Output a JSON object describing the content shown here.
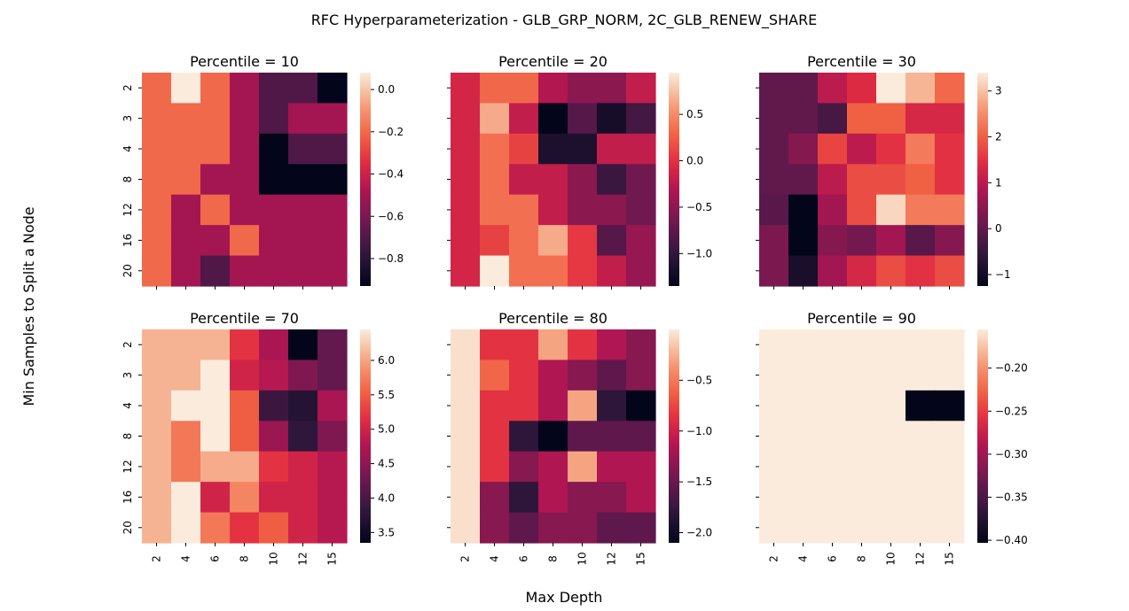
{
  "chart_data": {
    "type": "heatmap",
    "title": "RFC Hyperparameterization - GLB_GRP_NORM, 2C_GLB_RENEW_SHARE",
    "xlabel": "Max Depth",
    "ylabel": "Min Samples to Split a Node",
    "x_categories": [
      "2",
      "4",
      "6",
      "8",
      "10",
      "12",
      "15"
    ],
    "y_categories": [
      "2",
      "3",
      "4",
      "8",
      "12",
      "16",
      "20"
    ],
    "colormap": "rocket",
    "panels": [
      {
        "title": "Percentile = 10",
        "vmin": -0.93,
        "vmax": 0.08,
        "colorbar_ticks": [
          "0.0",
          "−0.2",
          "−0.4",
          "−0.6",
          "−0.8"
        ],
        "colorbar_tick_values": [
          0.0,
          -0.2,
          -0.4,
          -0.6,
          -0.8
        ],
        "values": [
          [
            -0.2,
            0.08,
            -0.2,
            -0.5,
            -0.7,
            -0.7,
            -0.93
          ],
          [
            -0.2,
            -0.2,
            -0.2,
            -0.5,
            -0.7,
            -0.5,
            -0.5
          ],
          [
            -0.2,
            -0.2,
            -0.2,
            -0.5,
            -0.93,
            -0.7,
            -0.7
          ],
          [
            -0.2,
            -0.2,
            -0.5,
            -0.5,
            -0.93,
            -0.93,
            -0.93
          ],
          [
            -0.2,
            -0.5,
            -0.2,
            -0.5,
            -0.5,
            -0.5,
            -0.5
          ],
          [
            -0.2,
            -0.5,
            -0.5,
            -0.2,
            -0.5,
            -0.5,
            -0.5
          ],
          [
            -0.2,
            -0.5,
            -0.7,
            -0.5,
            -0.5,
            -0.5,
            -0.5
          ]
        ]
      },
      {
        "title": "Percentile = 20",
        "vmin": -1.35,
        "vmax": 0.95,
        "colorbar_ticks": [
          "0.5",
          "0.0",
          "−0.5",
          "−1.0"
        ],
        "colorbar_tick_values": [
          0.5,
          0.0,
          -0.5,
          -1.0
        ],
        "values": [
          [
            -0.1,
            0.3,
            0.3,
            -0.3,
            -0.5,
            -0.5,
            -0.2
          ],
          [
            -0.1,
            0.65,
            -0.2,
            -1.35,
            -0.8,
            -1.2,
            -0.9
          ],
          [
            -0.1,
            0.35,
            0.1,
            -1.15,
            -1.15,
            -0.2,
            -0.2
          ],
          [
            -0.1,
            0.35,
            -0.2,
            -0.2,
            -0.5,
            -0.95,
            -0.65
          ],
          [
            -0.1,
            0.35,
            0.35,
            -0.2,
            -0.5,
            -0.5,
            -0.65
          ],
          [
            -0.1,
            0.1,
            0.35,
            0.65,
            0.05,
            -0.8,
            -0.45
          ],
          [
            -0.1,
            0.95,
            0.35,
            0.35,
            0.05,
            -0.2,
            -0.45
          ]
        ]
      },
      {
        "title": "Percentile = 30",
        "vmin": -1.25,
        "vmax": 3.4,
        "colorbar_ticks": [
          "3",
          "2",
          "1",
          "0",
          "−1"
        ],
        "colorbar_tick_values": [
          3,
          2,
          1,
          0,
          -1
        ],
        "values": [
          [
            0.0,
            0.0,
            1.0,
            1.4,
            3.4,
            2.9,
            2.1
          ],
          [
            0.0,
            0.0,
            -0.3,
            2.0,
            2.0,
            1.3,
            1.3
          ],
          [
            0.0,
            0.4,
            1.7,
            1.0,
            1.5,
            2.3,
            1.5
          ],
          [
            0.0,
            0.0,
            1.0,
            1.8,
            1.8,
            2.0,
            1.5
          ],
          [
            -0.1,
            -1.25,
            0.7,
            1.8,
            3.2,
            2.3,
            2.3
          ],
          [
            0.3,
            -1.25,
            0.4,
            0.2,
            0.7,
            -0.1,
            0.4
          ],
          [
            0.3,
            -0.9,
            0.7,
            1.3,
            1.8,
            1.5,
            1.8
          ]
        ]
      },
      {
        "title": "Percentile = 70",
        "vmin": 3.35,
        "vmax": 6.45,
        "colorbar_ticks": [
          "6.0",
          "5.5",
          "5.0",
          "4.5",
          "4.0",
          "3.5"
        ],
        "colorbar_tick_values": [
          6.0,
          5.5,
          5.0,
          4.5,
          4.0,
          3.5
        ],
        "values": [
          [
            6.1,
            6.1,
            6.1,
            5.2,
            4.7,
            3.35,
            4.2
          ],
          [
            6.1,
            6.1,
            6.45,
            5.0,
            4.8,
            4.4,
            4.2
          ],
          [
            6.1,
            6.45,
            6.45,
            5.5,
            3.9,
            3.7,
            4.7
          ],
          [
            6.1,
            5.7,
            6.45,
            5.5,
            4.6,
            3.8,
            4.4
          ],
          [
            6.1,
            5.7,
            6.05,
            6.05,
            5.2,
            5.0,
            4.8
          ],
          [
            6.1,
            6.45,
            5.0,
            5.8,
            5.0,
            5.0,
            4.8
          ],
          [
            6.1,
            6.45,
            5.7,
            5.2,
            5.5,
            5.0,
            4.8
          ]
        ]
      },
      {
        "title": "Percentile = 80",
        "vmin": -2.1,
        "vmax": 0.0,
        "colorbar_ticks": [
          "−0.5",
          "−1.0",
          "−1.5",
          "−2.0"
        ],
        "colorbar_tick_values": [
          -0.5,
          -1.0,
          -1.5,
          -2.0
        ],
        "values": [
          [
            -0.05,
            -0.85,
            -0.85,
            -0.3,
            -0.85,
            -1.15,
            -1.35
          ],
          [
            -0.05,
            -0.6,
            -0.85,
            -1.15,
            -1.35,
            -1.55,
            -1.35
          ],
          [
            -0.05,
            -0.85,
            -0.85,
            -1.15,
            -0.3,
            -1.8,
            -2.1
          ],
          [
            -0.05,
            -0.85,
            -1.8,
            -2.1,
            -1.55,
            -1.55,
            -1.55
          ],
          [
            -0.05,
            -0.85,
            -1.35,
            -1.15,
            -0.3,
            -1.15,
            -1.15
          ],
          [
            -0.05,
            -1.35,
            -1.8,
            -1.15,
            -1.35,
            -1.35,
            -1.15
          ],
          [
            -0.05,
            -1.35,
            -1.55,
            -1.35,
            -1.35,
            -1.55,
            -1.55
          ]
        ]
      },
      {
        "title": "Percentile = 90",
        "vmin": -0.403,
        "vmax": -0.155,
        "colorbar_ticks": [
          "−0.20",
          "−0.25",
          "−0.30",
          "−0.35",
          "−0.40"
        ],
        "colorbar_tick_values": [
          -0.2,
          -0.25,
          -0.3,
          -0.35,
          -0.4
        ],
        "values": [
          [
            -0.155,
            -0.155,
            -0.155,
            -0.155,
            -0.155,
            -0.155,
            -0.155
          ],
          [
            -0.155,
            -0.155,
            -0.155,
            -0.155,
            -0.155,
            -0.155,
            -0.155
          ],
          [
            -0.155,
            -0.155,
            -0.155,
            -0.155,
            -0.155,
            -0.403,
            -0.403
          ],
          [
            -0.155,
            -0.155,
            -0.155,
            -0.155,
            -0.155,
            -0.155,
            -0.155
          ],
          [
            -0.155,
            -0.155,
            -0.155,
            -0.155,
            -0.155,
            -0.155,
            -0.155
          ],
          [
            -0.155,
            -0.155,
            -0.155,
            -0.155,
            -0.155,
            -0.155,
            -0.155
          ],
          [
            -0.155,
            -0.155,
            -0.155,
            -0.155,
            -0.155,
            -0.155,
            -0.155
          ]
        ]
      }
    ]
  }
}
